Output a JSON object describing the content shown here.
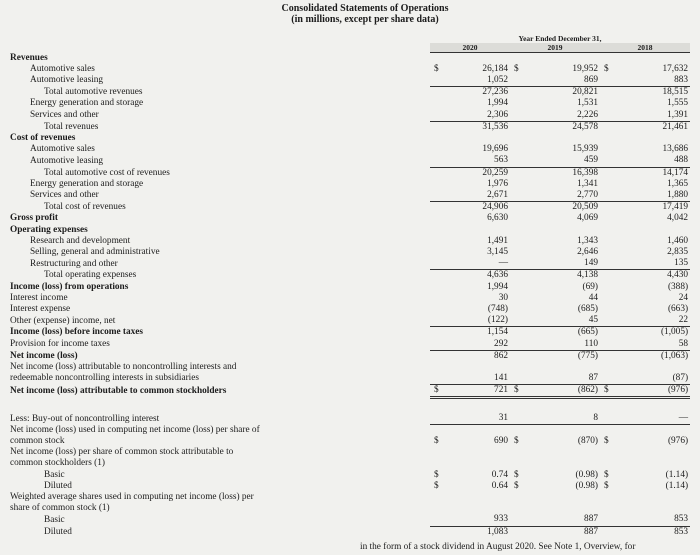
{
  "header": {
    "title": "Consolidated Statements of Operations",
    "subtitle": "(in millions, except per share data)",
    "period_label": "Year Ended December 31,",
    "years": [
      "2020",
      "2019",
      "2018"
    ]
  },
  "rows": [
    {
      "label": "Revenues"
    },
    {
      "label": "Automotive sales",
      "currency": [
        "$",
        "$",
        "$"
      ],
      "values": [
        "26,184",
        "19,952",
        "17,632"
      ]
    },
    {
      "label": "Automotive leasing",
      "values": [
        "1,052",
        "869",
        "883"
      ]
    },
    {
      "label": "Total automotive revenues",
      "values": [
        "27,236",
        "20,821",
        "18,515"
      ]
    },
    {
      "label": "Energy generation and storage",
      "values": [
        "1,994",
        "1,531",
        "1,555"
      ]
    },
    {
      "label": "Services and other",
      "values": [
        "2,306",
        "2,226",
        "1,391"
      ]
    },
    {
      "label": "Total revenues",
      "values": [
        "31,536",
        "24,578",
        "21,461"
      ]
    },
    {
      "label": "Cost of revenues"
    },
    {
      "label": "Automotive sales",
      "values": [
        "19,696",
        "15,939",
        "13,686"
      ]
    },
    {
      "label": "Automotive leasing",
      "values": [
        "563",
        "459",
        "488"
      ]
    },
    {
      "label": "Total automotive cost of revenues",
      "values": [
        "20,259",
        "16,398",
        "14,174"
      ]
    },
    {
      "label": "Energy generation and storage",
      "values": [
        "1,976",
        "1,341",
        "1,365"
      ]
    },
    {
      "label": "Services and other",
      "values": [
        "2,671",
        "2,770",
        "1,880"
      ]
    },
    {
      "label": "Total cost of revenues",
      "values": [
        "24,906",
        "20,509",
        "17,419"
      ]
    },
    {
      "label": "Gross profit",
      "values": [
        "6,630",
        "4,069",
        "4,042"
      ]
    },
    {
      "label": "Operating expenses"
    },
    {
      "label": "Research and development",
      "values": [
        "1,491",
        "1,343",
        "1,460"
      ]
    },
    {
      "label": "Selling, general and administrative",
      "values": [
        "3,145",
        "2,646",
        "2,835"
      ]
    },
    {
      "label": "Restructuring and other",
      "values": [
        "—",
        "149",
        "135"
      ]
    },
    {
      "label": "Total operating expenses",
      "values": [
        "4,636",
        "4,138",
        "4,430"
      ]
    },
    {
      "label": "Income (loss) from operations",
      "values": [
        "1,994",
        "(69)",
        "(388)"
      ]
    },
    {
      "label": "Interest income",
      "values": [
        "30",
        "44",
        "24"
      ]
    },
    {
      "label": "Interest expense",
      "values": [
        "(748)",
        "(685)",
        "(663)"
      ]
    },
    {
      "label": "Other (expense) income, net",
      "values": [
        "(122)",
        "45",
        "22"
      ]
    },
    {
      "label": "Income (loss) before income taxes",
      "values": [
        "1,154",
        "(665)",
        "(1,005)"
      ]
    },
    {
      "label": "Provision for income taxes",
      "values": [
        "292",
        "110",
        "58"
      ]
    },
    {
      "label": "Net income (loss)",
      "values": [
        "862",
        "(775)",
        "(1,063)"
      ]
    },
    {
      "label": "Net income (loss) attributable to noncontrolling interests and redeemable noncontrolling interests in subsidiaries",
      "values": [
        "141",
        "87",
        "(87)"
      ]
    },
    {
      "label": "Net income (loss) attributable to common stockholders",
      "currency": [
        "$",
        "$",
        "$"
      ],
      "values": [
        "721",
        "(862)",
        "(976)"
      ]
    },
    {
      "label": "Less: Buy-out of noncontrolling interest",
      "values": [
        "31",
        "8",
        "—"
      ]
    },
    {
      "label": "Net income (loss) used in computing net income (loss) per share of common stock",
      "currency": [
        "$",
        "$",
        "$"
      ],
      "values": [
        "690",
        "(870)",
        "(976)"
      ]
    },
    {
      "label": "Net income (loss) per share of common stock attributable to common stockholders (1)"
    },
    {
      "label": "Basic",
      "currency": [
        "$",
        "$",
        "$"
      ],
      "values": [
        "0.74",
        "(0.98)",
        "(1.14)"
      ]
    },
    {
      "label": "Diluted",
      "currency": [
        "$",
        "$",
        "$"
      ],
      "values": [
        "0.64",
        "(0.98)",
        "(1.14)"
      ]
    },
    {
      "label": "Weighted average shares used in computing net income (loss) per share of common stock (1)"
    },
    {
      "label": "Basic",
      "values": [
        "933",
        "887",
        "853"
      ]
    },
    {
      "label": "Diluted",
      "values": [
        "1,083",
        "887",
        "853"
      ]
    }
  ],
  "footnote": "in the form of a stock dividend in August 2020. See Note 1, Overview, for"
}
